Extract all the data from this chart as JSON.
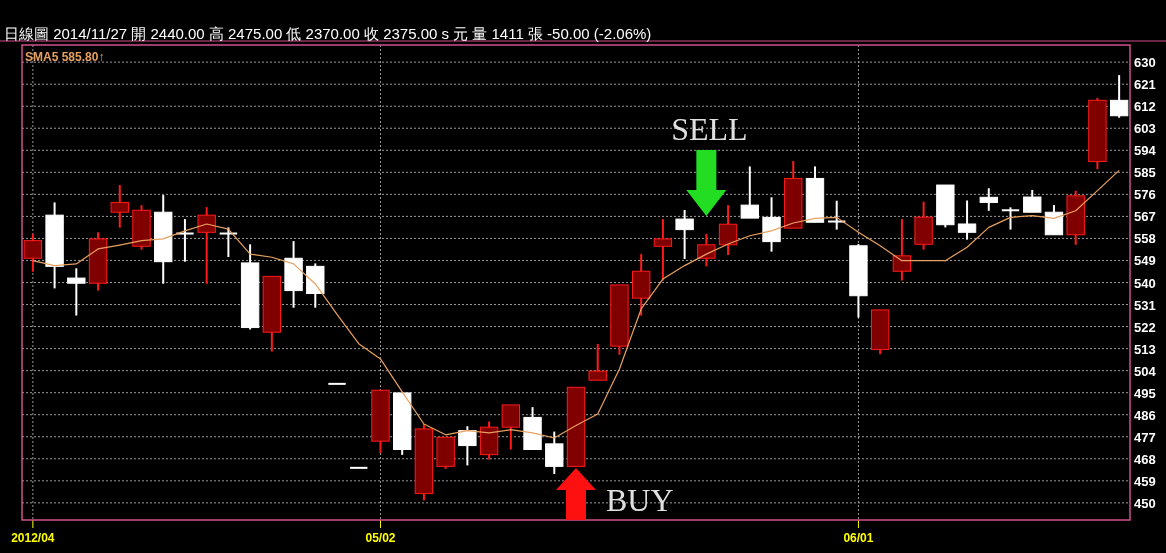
{
  "chart_data": {
    "type": "candlestick",
    "title": "日線圖 2014/11/27 開 2440.00 高 2475.00 低 2370.00 收 2375.00 s 元 量 1411 張 -50.00 (-2.06%)",
    "categories": [
      "2012/04",
      null,
      null,
      null,
      null,
      null,
      null,
      null,
      null,
      null,
      null,
      null,
      null,
      null,
      null,
      null,
      "05/02",
      null,
      null,
      null,
      null,
      null,
      null,
      null,
      null,
      null,
      null,
      null,
      null,
      null,
      null,
      null,
      null,
      null,
      null,
      null,
      null,
      null,
      "06/01",
      null,
      null,
      null,
      null,
      null,
      null,
      null,
      null,
      null,
      null,
      null,
      null
    ],
    "ohlc": [
      [
        549.9,
        559.8,
        544.4,
        557.1
      ],
      [
        567.5,
        572.7,
        537.6,
        546.6
      ],
      [
        541.8,
        545.8,
        526.5,
        539.7
      ],
      [
        539.7,
        560.5,
        536.7,
        557.8
      ],
      [
        568.7,
        579.8,
        562.4,
        572.7
      ],
      [
        554.8,
        571.6,
        553.4,
        569.5
      ],
      [
        568.7,
        575.7,
        539.5,
        548.5
      ],
      [
        560.0,
        565.9,
        548.5,
        559.7
      ],
      [
        560.5,
        570.8,
        539.5,
        567.5
      ],
      [
        560.0,
        562.5,
        550.4,
        559.6
      ],
      [
        548.0,
        555.6,
        520.8,
        521.6
      ],
      [
        519.7,
        542.5,
        511.8,
        542.5
      ],
      [
        549.9,
        556.9,
        529.7,
        536.7
      ],
      [
        546.6,
        547.8,
        529.7,
        535.5
      ],
      [
        498.6,
        498.6,
        498.6,
        498.6
      ],
      [
        464.3,
        464.3,
        464.3,
        464.3
      ],
      [
        475.2,
        496.0,
        470.4,
        496.0
      ],
      [
        494.9,
        494.9,
        469.6,
        471.8
      ],
      [
        453.8,
        482.2,
        451.0,
        480.2
      ],
      [
        464.9,
        476.8,
        463.9,
        476.8
      ],
      [
        479.5,
        481.3,
        465.3,
        473.4
      ],
      [
        469.7,
        483.2,
        467.7,
        480.9
      ],
      [
        480.9,
        490.0,
        471.8,
        490.0
      ],
      [
        484.9,
        489.1,
        471.8,
        471.8
      ],
      [
        474.1,
        479.1,
        461.8,
        464.9
      ],
      [
        464.9,
        497.2,
        464.9,
        497.2
      ],
      [
        500.1,
        514.9,
        500.1,
        503.8
      ],
      [
        514.0,
        539.0,
        510.5,
        539.0
      ],
      [
        533.6,
        551.6,
        526.5,
        544.6
      ],
      [
        554.8,
        565.9,
        540.8,
        557.8
      ],
      [
        565.9,
        569.6,
        549.6,
        561.6
      ],
      [
        549.9,
        559.8,
        546.6,
        555.4
      ],
      [
        555.4,
        571.6,
        551.2,
        563.8
      ],
      [
        571.6,
        587.4,
        566.3,
        566.3
      ],
      [
        566.6,
        574.8,
        552.6,
        556.7
      ],
      [
        562.2,
        589.6,
        562.2,
        582.5
      ],
      [
        582.5,
        587.4,
        564.6,
        564.6
      ],
      [
        564.9,
        573.4,
        561.6,
        564.3
      ],
      [
        555.0,
        555.7,
        525.7,
        534.6
      ],
      [
        512.6,
        528.8,
        510.7,
        528.8
      ],
      [
        544.6,
        565.9,
        540.8,
        550.9
      ],
      [
        555.6,
        573.0,
        553.4,
        566.7
      ],
      [
        579.8,
        579.8,
        562.5,
        563.6
      ],
      [
        563.9,
        573.5,
        557.5,
        560.5
      ],
      [
        574.8,
        578.5,
        569.3,
        572.7
      ],
      [
        569.5,
        570.7,
        561.6,
        569.0
      ],
      [
        574.9,
        577.8,
        568.7,
        568.7
      ],
      [
        568.7,
        571.6,
        559.5,
        559.5
      ],
      [
        559.5,
        577.5,
        555.4,
        575.4
      ],
      [
        589.4,
        615.4,
        586.3,
        614.4
      ],
      [
        614.4,
        624.7,
        607.3,
        608.1
      ]
    ],
    "colors": [
      "#800000",
      "#ffffff",
      "#ffffff",
      "#800000",
      "#800000",
      "#800000",
      "#ffffff",
      "#ffffff",
      "#800000",
      "#ffffff",
      "#ffffff",
      "#800000",
      "#ffffff",
      "#ffffff",
      "#ffffff",
      "#ffffff",
      "#800000",
      "#ffffff",
      "#800000",
      "#800000",
      "#ffffff",
      "#800000",
      "#800000",
      "#ffffff",
      "#ffffff",
      "#800000",
      "#800000",
      "#800000",
      "#800000",
      "#800000",
      "#ffffff",
      "#800000",
      "#800000",
      "#ffffff",
      "#ffffff",
      "#800000",
      "#ffffff",
      "#ffffff",
      "#ffffff",
      "#800000",
      "#800000",
      "#800000",
      "#ffffff",
      "#ffffff",
      "#ffffff",
      "#ffffff",
      "#ffffff",
      "#ffffff",
      "#800000",
      "#800000",
      "#ffffff"
    ],
    "series": [
      {
        "name": "SMA5 585.80↑",
        "type": "line",
        "color": "#e8a060",
        "values": [
          548.9,
          546.9,
          547.6,
          553.7,
          555.3,
          557.1,
          557.8,
          561.1,
          563.9,
          561.8,
          551.6,
          550.3,
          547.6,
          539.4,
          527.0,
          515.0,
          508.8,
          495.3,
          482.2,
          477.8,
          479.5,
          478.6,
          479.9,
          478.6,
          476.5,
          481.6,
          486.3,
          504.7,
          529.2,
          541.4,
          546.9,
          551.6,
          555.7,
          559.1,
          561.1,
          564.3,
          566.2,
          566.6,
          560.5,
          555.0,
          548.9,
          548.9,
          548.9,
          554.4,
          562.5,
          566.6,
          567.3,
          566.2,
          569.3,
          577.5,
          585.8
        ]
      }
    ],
    "ylim": [
      443,
      637
    ],
    "yticks": [
      450,
      459,
      468,
      477,
      486,
      495,
      504,
      513,
      522,
      531,
      540,
      549,
      558,
      567,
      576,
      585,
      594,
      603,
      612,
      621,
      630
    ],
    "grid": true,
    "legend": "top left",
    "annotations": [
      "SELL",
      "BUY"
    ]
  }
}
